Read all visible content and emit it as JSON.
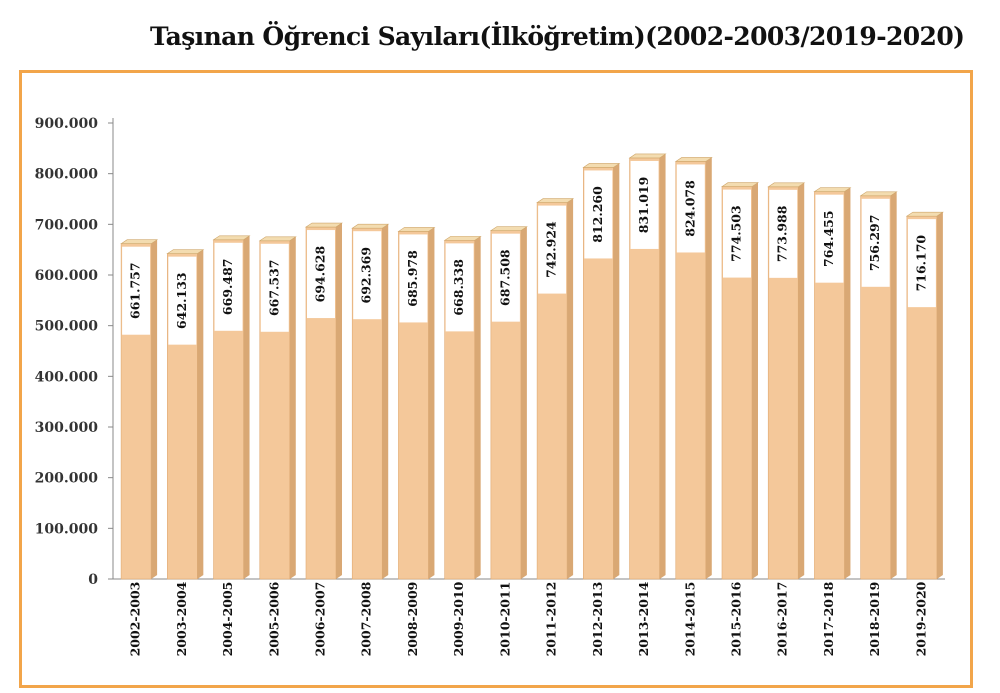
{
  "title": "Taşınan Öğrenci Sayıları(İlköğretim)(2002-2003/2019-2020)",
  "colors": {
    "bar_fill": "#f4c89a",
    "bar_side": "#d9a874",
    "bar_top": "#f3dcb0",
    "label_box": "#ffffff",
    "frame": "#f2a54a",
    "grid": "#c8c8c8"
  },
  "chart_data": {
    "type": "bar",
    "title": "Taşınan Öğrenci Sayıları(İlköğretim)(2002-2003/2019-2020)",
    "xlabel": "",
    "ylabel": "",
    "ylim": [
      0,
      900000
    ],
    "yticks": [
      0,
      100000,
      200000,
      300000,
      400000,
      500000,
      600000,
      700000,
      800000,
      900000
    ],
    "ytick_labels": [
      "0",
      "100.000",
      "200.000",
      "300.000",
      "400.000",
      "500.000",
      "600.000",
      "700.000",
      "800.000",
      "900.000"
    ],
    "grid": false,
    "categories": [
      "2002-2003",
      "2003-2004",
      "2004-2005",
      "2005-2006",
      "2006-2007",
      "2007-2008",
      "2008-2009",
      "2009-2010",
      "2010-2011",
      "2011-2012",
      "2012-2013",
      "2013-2014",
      "2014-2015",
      "2015-2016",
      "2016-2017",
      "2017-2018",
      "2018-2019",
      "2019-2020"
    ],
    "values": [
      661757,
      642133,
      669487,
      667537,
      694628,
      692369,
      685978,
      668338,
      687508,
      742924,
      812260,
      831019,
      824078,
      774503,
      773988,
      764455,
      756297,
      716170
    ],
    "data_labels": [
      "661.757",
      "642.133",
      "669.487",
      "667.537",
      "694.628",
      "692.369",
      "685.978",
      "668.338",
      "687.508",
      "742.924",
      "812.260",
      "831.019",
      "824.078",
      "774.503",
      "773.988",
      "764.455",
      "756.297",
      "716.170"
    ]
  }
}
